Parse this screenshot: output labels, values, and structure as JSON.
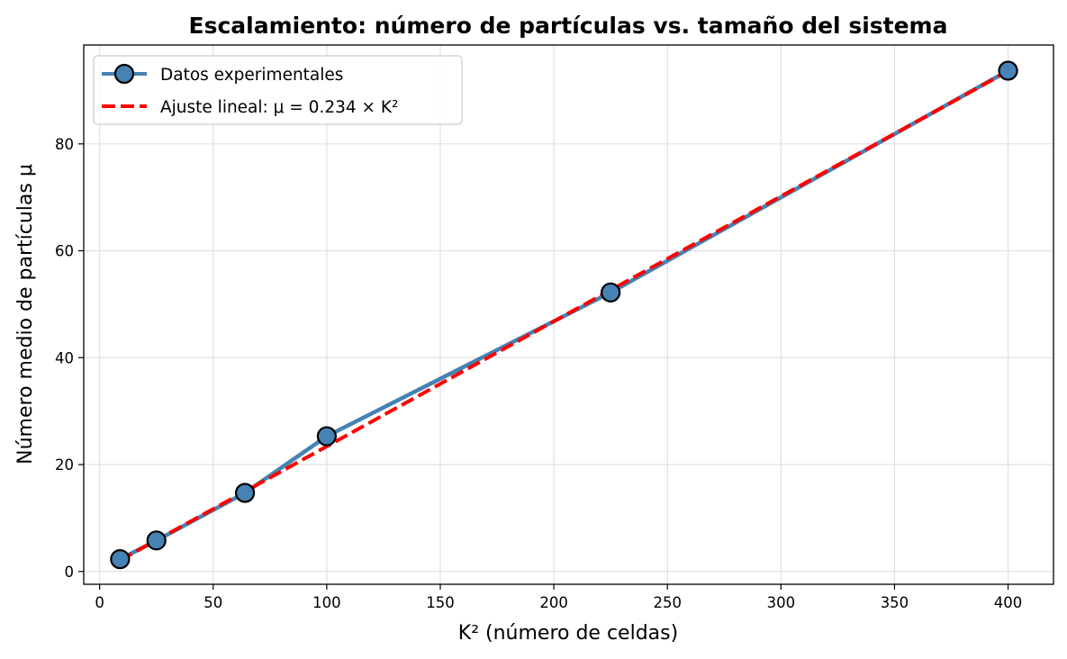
{
  "chart_data": {
    "type": "line",
    "title": "Escalamiento: número de partículas vs. tamaño del sistema",
    "xlabel": "K² (número de celdas)",
    "ylabel": "Número medio de partículas μ",
    "xlim": [
      -7,
      420
    ],
    "ylim": [
      -2.4,
      98.5
    ],
    "xticks": [
      0,
      50,
      100,
      150,
      200,
      250,
      300,
      350,
      400
    ],
    "yticks": [
      0,
      20,
      40,
      60,
      80
    ],
    "grid": true,
    "legend_position": "top-left",
    "series": [
      {
        "name": "Datos experimentales",
        "kind": "line-markers",
        "color": "#4682b4",
        "x": [
          9,
          25,
          64,
          100,
          225,
          400
        ],
        "y": [
          2.3,
          5.8,
          14.7,
          25.3,
          52.2,
          93.7
        ]
      },
      {
        "name": "Ajuste lineal: μ = 0.234 × K²",
        "kind": "dashed-line",
        "color": "#ff0000",
        "slope": 0.234,
        "x": [
          9,
          400
        ],
        "y": [
          2.106,
          93.6
        ]
      }
    ]
  }
}
